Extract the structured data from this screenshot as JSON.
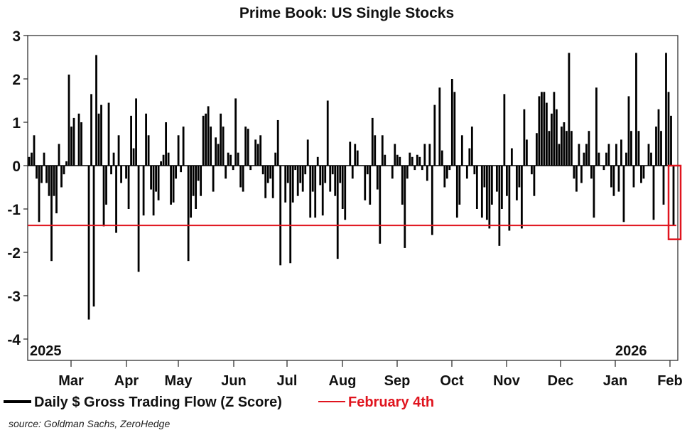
{
  "chart_data": {
    "type": "bar",
    "title": "Prime Book: US Single Stocks",
    "xlabel": "",
    "ylabel": "",
    "ylim": [
      -4,
      3
    ],
    "yticks": [
      3,
      2,
      1,
      0,
      -1,
      -2,
      -3,
      -4
    ],
    "xtick_labels": [
      "Mar",
      "Apr",
      "May",
      "Jun",
      "Jul",
      "Aug",
      "Sep",
      "Oct",
      "Nov",
      "Dec",
      "Jan",
      "Feb"
    ],
    "year_labels": [
      "2025",
      "2026"
    ],
    "grid": false,
    "legend_position": "bottom",
    "series": [
      {
        "name": "Daily $ Gross Trading Flow (Z Score)",
        "color": "#000000",
        "values": [
          0.2,
          0.3,
          0.7,
          -0.3,
          -1.3,
          -0.4,
          0.3,
          -0.4,
          -0.7,
          -2.2,
          -0.7,
          -1.1,
          0.5,
          -0.5,
          -0.2,
          0.1,
          2.1,
          0.9,
          1.1,
          0.0,
          1.2,
          1.0,
          0.0,
          0.0,
          -3.55,
          1.65,
          -3.25,
          2.55,
          1.2,
          1.4,
          -1.4,
          -0.9,
          1.45,
          -0.2,
          0.3,
          -1.55,
          0.7,
          -0.4,
          0.0,
          -0.3,
          -1.0,
          1.15,
          0.4,
          1.55,
          -2.45,
          0.0,
          -1.15,
          1.2,
          0.7,
          -0.55,
          -1.15,
          -0.6,
          -0.8,
          0.1,
          0.25,
          1.0,
          0.3,
          -0.9,
          -0.85,
          -0.3,
          0.7,
          -0.15,
          0.9,
          0.0,
          -2.2,
          -1.2,
          -0.7,
          -1.0,
          -0.35,
          -0.7,
          1.15,
          1.2,
          1.37,
          0.9,
          -0.6,
          0.65,
          0.5,
          1.2,
          0.9,
          -0.3,
          0.3,
          0.25,
          -0.1,
          1.55,
          0.3,
          -0.5,
          -0.6,
          0.9,
          0.85,
          -0.1,
          0.0,
          0.6,
          0.5,
          0.7,
          -0.2,
          -0.75,
          -0.4,
          -0.3,
          -0.75,
          0.3,
          1.05,
          -2.3,
          0.0,
          -0.85,
          -0.4,
          -2.25,
          -0.85,
          -0.1,
          -0.7,
          -0.4,
          -0.6,
          -0.2,
          0.6,
          -1.2,
          -0.6,
          -1.2,
          0.2,
          -0.45,
          -1.15,
          -0.4,
          1.5,
          -0.6,
          -0.2,
          -0.7,
          -2.15,
          -0.4,
          -1.0,
          -1.25,
          0.0,
          0.55,
          -0.3,
          0.5,
          0.35,
          0.0,
          0.0,
          -0.8,
          -0.2,
          -0.9,
          1.1,
          0.7,
          -0.55,
          -1.8,
          0.7,
          0.25,
          0.0,
          0.0,
          -0.3,
          0.5,
          0.25,
          0.2,
          -0.9,
          -1.9,
          -0.3,
          0.3,
          0.2,
          -0.1,
          0.25,
          0.2,
          -0.1,
          0.5,
          -0.35,
          0.5,
          -1.6,
          1.4,
          0.0,
          1.8,
          0.35,
          -0.5,
          -0.3,
          -0.1,
          2.0,
          1.7,
          -1.2,
          -0.9,
          0.7,
          0.0,
          -0.3,
          0.4,
          0.9,
          -0.2,
          -1.0,
          0.0,
          -1.2,
          -0.5,
          -1.25,
          -1.45,
          -0.9,
          0.0,
          -0.6,
          -1.85,
          -1.0,
          1.65,
          -0.7,
          -1.5,
          0.4,
          0.0,
          -0.8,
          -0.5,
          -1.45,
          1.3,
          0.6,
          0.0,
          -0.2,
          -0.7,
          0.75,
          1.6,
          1.7,
          1.7,
          1.45,
          0.8,
          1.2,
          1.7,
          1.3,
          0.5,
          0.9,
          1.0,
          0.8,
          2.6,
          0.8,
          -0.3,
          -0.6,
          0.5,
          -0.4,
          0.3,
          0.5,
          0.8,
          -0.3,
          -1.2,
          1.8,
          0.3,
          0.0,
          -0.1,
          0.3,
          0.5,
          -0.5,
          -0.7,
          0.5,
          -0.6,
          0.6,
          -1.3,
          0.3,
          1.6,
          0.8,
          -0.5,
          2.6,
          0.8,
          -0.4,
          -0.3,
          0.0,
          0.5,
          0.3,
          -1.25,
          0.9,
          1.3,
          0.8,
          -0.9,
          2.6,
          1.7,
          1.15,
          -1.38
        ]
      },
      {
        "name": "February 4th",
        "color": "#e0141e",
        "type": "hline",
        "value": -1.38
      }
    ],
    "source": "source: Goldman Sachs, ZeroHedge"
  }
}
